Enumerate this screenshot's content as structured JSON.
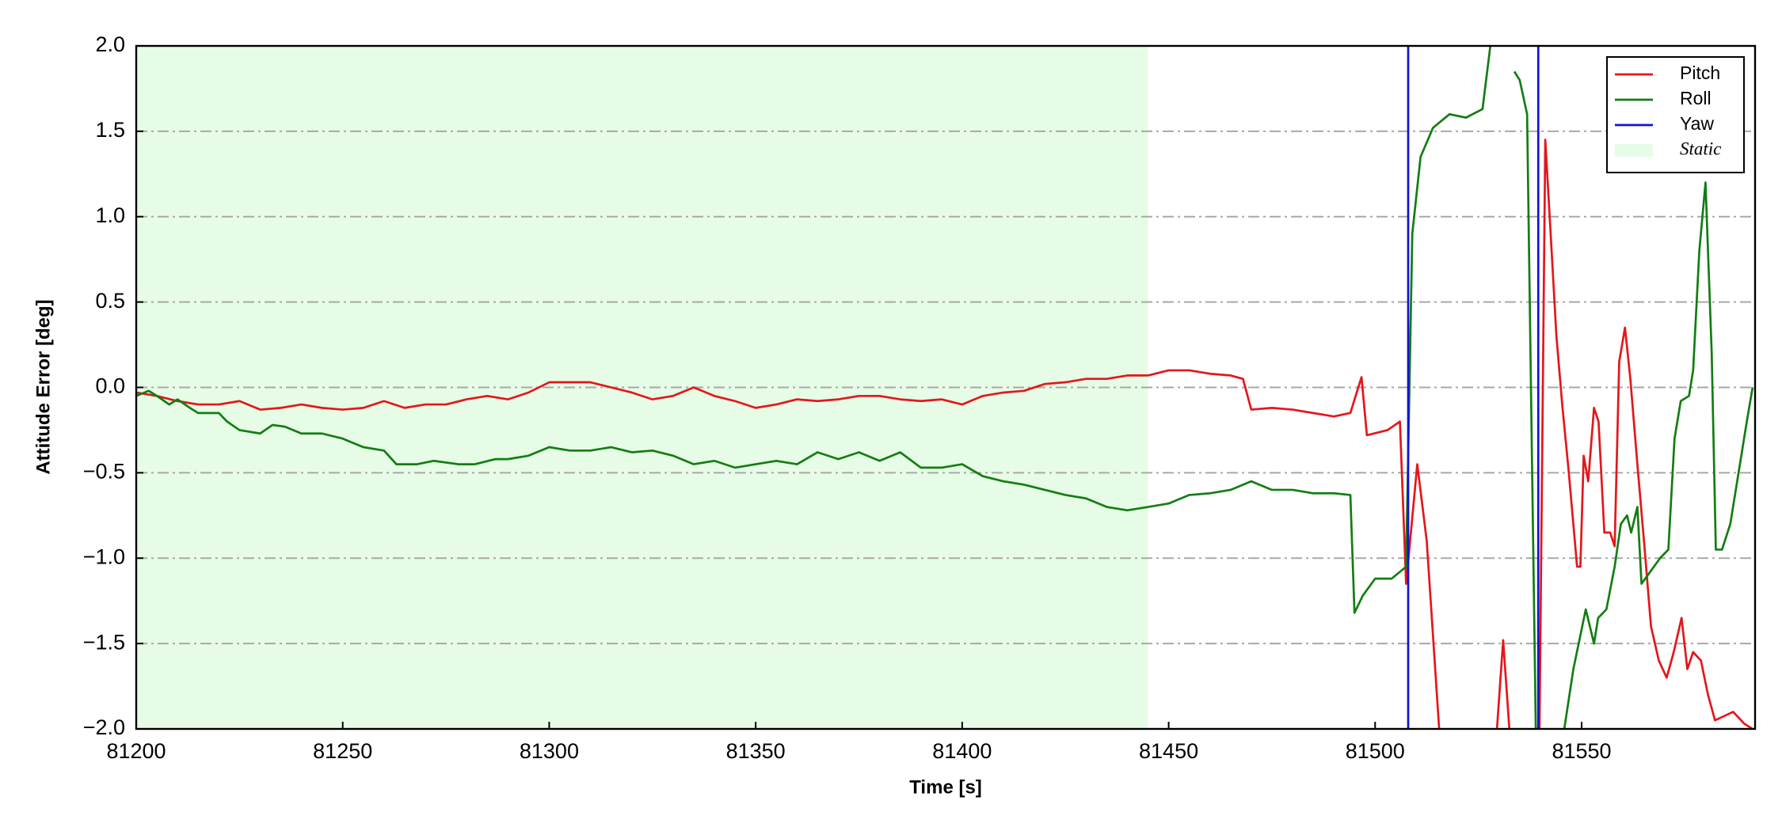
{
  "chart_data": {
    "type": "line",
    "xlabel": "Time [s]",
    "ylabel": "Attitude Error [deg]",
    "xlim": [
      81200,
      81592
    ],
    "ylim": [
      -2,
      2
    ],
    "xticks": [
      81200,
      81250,
      81300,
      81350,
      81400,
      81450,
      81500,
      81550
    ],
    "yticks": [
      {
        "value": -2,
        "label": "−2.0"
      },
      {
        "value": -1.5,
        "label": "−1.5"
      },
      {
        "value": -1,
        "label": "−1.0"
      },
      {
        "value": -0.5,
        "label": "−0.5"
      },
      {
        "value": 0,
        "label": "0.0"
      },
      {
        "value": 0.5,
        "label": "0.5"
      },
      {
        "value": 1,
        "label": "1.0"
      },
      {
        "value": 1.5,
        "label": "1.5"
      },
      {
        "value": 2,
        "label": "2.0"
      }
    ],
    "grid": true,
    "legend": "upper right",
    "static": {
      "name": "Static",
      "xrange": [
        81200,
        81445
      ],
      "color": "#e6fce6"
    },
    "series": [
      {
        "name": "Pitch",
        "color": "#e3171b",
        "x": [
          81200,
          81205,
          81210,
          81215,
          81220,
          81225,
          81230,
          81235,
          81240,
          81245,
          81250,
          81255,
          81260,
          81265,
          81270,
          81275,
          81280,
          81285,
          81290,
          81295,
          81300,
          81305,
          81310,
          81315,
          81320,
          81325,
          81330,
          81335,
          81340,
          81345,
          81350,
          81355,
          81360,
          81365,
          81370,
          81375,
          81380,
          81385,
          81390,
          81395,
          81400,
          81405,
          81410,
          81415,
          81420,
          81425,
          81430,
          81435,
          81440,
          81445,
          81450,
          81455,
          81460,
          81465,
          81468,
          81470,
          81475,
          81480,
          81485,
          81490,
          81494,
          81496.7,
          81498,
          81503,
          81506,
          81507.5,
          81510.2,
          81512.5,
          81515.5,
          81523,
          81529.5,
          81531,
          81532.5,
          81536,
          81539.8,
          81541.2,
          81542.5,
          81543.9,
          81545.3,
          81546.9,
          81548.9,
          81549.7,
          81550.5,
          81551.6,
          81553,
          81554.1,
          81555.5,
          81556.9,
          81558,
          81559.1,
          81560.5,
          81561.8,
          81563.5,
          81565.1,
          81566.8,
          81568.7,
          81570.6,
          81572.3,
          81574.2,
          81575.6,
          81577,
          81578.9,
          81580.6,
          81582.3,
          81586.7,
          81589.4,
          81591.4
        ],
        "values": [
          -0.03,
          -0.05,
          -0.08,
          -0.1,
          -0.1,
          -0.08,
          -0.13,
          -0.12,
          -0.1,
          -0.12,
          -0.13,
          -0.12,
          -0.08,
          -0.12,
          -0.1,
          -0.1,
          -0.07,
          -0.05,
          -0.07,
          -0.03,
          0.03,
          0.03,
          0.03,
          0,
          -0.03,
          -0.07,
          -0.05,
          0,
          -0.05,
          -0.08,
          -0.12,
          -0.1,
          -0.07,
          -0.08,
          -0.07,
          -0.05,
          -0.05,
          -0.07,
          -0.08,
          -0.07,
          -0.1,
          -0.05,
          -0.03,
          -0.02,
          0.02,
          0.03,
          0.05,
          0.05,
          0.07,
          0.07,
          0.1,
          0.1,
          0.08,
          0.07,
          0.05,
          -0.13,
          -0.12,
          -0.13,
          -0.15,
          -0.17,
          -0.15,
          0.06,
          -0.28,
          -0.25,
          -0.2,
          -1.15,
          -0.45,
          -0.9,
          -2,
          null,
          -2,
          -1.48,
          -2,
          null,
          -2,
          1.45,
          0.9,
          0.3,
          -0.1,
          -0.5,
          -1.05,
          -1.05,
          -0.4,
          -0.55,
          -0.12,
          -0.2,
          -0.85,
          -0.85,
          -0.93,
          0.15,
          0.35,
          0.05,
          -0.45,
          -0.9,
          -1.4,
          -1.6,
          -1.7,
          -1.55,
          -1.35,
          -1.65,
          -1.55,
          -1.6,
          -1.8,
          -1.95,
          -1.9,
          -1.97,
          -2
        ]
      },
      {
        "name": "Roll",
        "color": "#137d13",
        "x": [
          81200,
          81203,
          81205,
          81208,
          81210,
          81213,
          81215,
          81220,
          81222,
          81225,
          81230,
          81233,
          81236,
          81240,
          81245,
          81250,
          81255,
          81260,
          81263,
          81268,
          81272,
          81278,
          81282,
          81287,
          81290,
          81295,
          81300,
          81305,
          81310,
          81315,
          81320,
          81325,
          81330,
          81335,
          81340,
          81345,
          81350,
          81355,
          81360,
          81365,
          81370,
          81375,
          81380,
          81385,
          81390,
          81395,
          81400,
          81405,
          81410,
          81415,
          81420,
          81425,
          81430,
          81435,
          81440,
          81445,
          81450,
          81455,
          81460,
          81465,
          81470,
          81475,
          81480,
          81485,
          81490,
          81494,
          81495,
          81497,
          81500,
          81504,
          81506,
          81507.5,
          81509,
          81511,
          81514,
          81518,
          81522,
          81526,
          81527.9,
          81531,
          81533.7,
          81535,
          81536.8,
          81538.9,
          81542,
          81545.8,
          81548,
          81551,
          81553,
          81554,
          81556,
          81558,
          81559.5,
          81561,
          81562,
          81563.5,
          81564.5,
          81566,
          81569,
          81571,
          81572.5,
          81574,
          81576,
          81577,
          81578.5,
          81580,
          81581.5,
          81582.5,
          81584,
          81586,
          81588,
          81590,
          81591.4
        ],
        "values": [
          -0.05,
          -0.02,
          -0.05,
          -0.1,
          -0.07,
          -0.12,
          -0.15,
          -0.15,
          -0.2,
          -0.25,
          -0.27,
          -0.22,
          -0.23,
          -0.27,
          -0.27,
          -0.3,
          -0.35,
          -0.37,
          -0.45,
          -0.45,
          -0.43,
          -0.45,
          -0.45,
          -0.42,
          -0.42,
          -0.4,
          -0.35,
          -0.37,
          -0.37,
          -0.35,
          -0.38,
          -0.37,
          -0.4,
          -0.45,
          -0.43,
          -0.47,
          -0.45,
          -0.43,
          -0.45,
          -0.38,
          -0.42,
          -0.38,
          -0.43,
          -0.38,
          -0.47,
          -0.47,
          -0.45,
          -0.52,
          -0.55,
          -0.57,
          -0.6,
          -0.63,
          -0.65,
          -0.7,
          -0.72,
          -0.7,
          -0.68,
          -0.63,
          -0.62,
          -0.6,
          -0.55,
          -0.6,
          -0.6,
          -0.62,
          -0.62,
          -0.63,
          -1.32,
          -1.22,
          -1.12,
          -1.12,
          -1.08,
          -1.05,
          0.9,
          1.35,
          1.52,
          1.6,
          1.58,
          1.63,
          2,
          null,
          1.85,
          1.8,
          1.6,
          -2,
          null,
          -2,
          -1.65,
          -1.3,
          -1.5,
          -1.35,
          -1.3,
          -1.05,
          -0.8,
          -0.75,
          -0.85,
          -0.7,
          -1.15,
          -1.1,
          -1,
          -0.95,
          -0.3,
          -0.08,
          -0.05,
          0.1,
          0.8,
          1.2,
          0.2,
          -0.95,
          -0.95,
          -0.8,
          -0.5,
          -0.2,
          0
        ]
      },
      {
        "name": "Yaw",
        "color": "#1212d2",
        "x": [
          81508,
          81508,
          81524,
          81539.5,
          81539.5
        ],
        "values": [
          -2,
          2,
          null,
          -2,
          2
        ]
      }
    ]
  }
}
